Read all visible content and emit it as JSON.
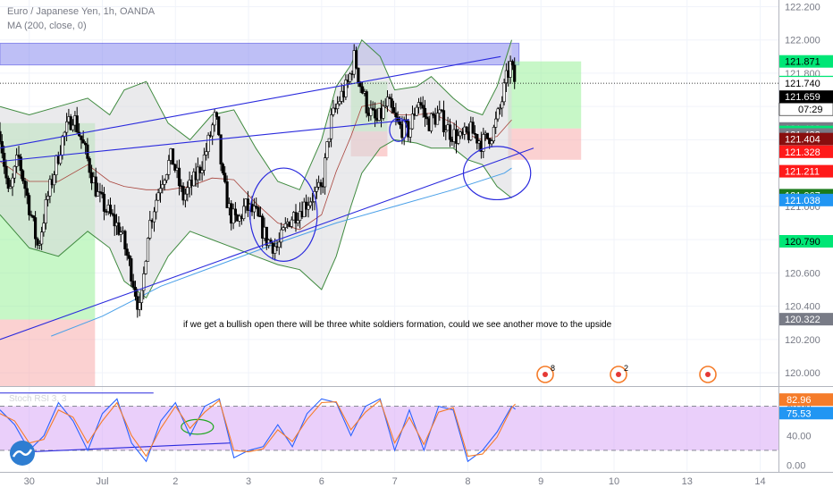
{
  "header": {
    "symbol_line": "Euro / Japanese Yen, 1h, OANDA",
    "indicator_line": "MA (200, close, 0)"
  },
  "stoch_label": "Stoch RSI 3, 3",
  "annotation": "if we get a bullish open there will be three white soldiers formation, could we see another move to the upside",
  "countdown": "07:29",
  "events": [
    {
      "label": "8"
    },
    {
      "label": "2"
    },
    {
      "label": ""
    }
  ],
  "colors": {
    "candle": "#000000",
    "bb_fill": "#d8d8dd",
    "ma200": "#4aa0e8",
    "basis": "#a8443c",
    "channel": "#2a2add",
    "supply_box": "#8a8cf0",
    "green_zone": "#8ff08f",
    "red_zone": "#f7a3a3",
    "stoch_bg": "#d9a8f6",
    "stoch_k": "#2962ff",
    "stoch_d": "#f57c2a",
    "event": "#f57c2a"
  },
  "chart_data": [
    {
      "type": "candlestick",
      "series_name": "Euro / Japanese Yen, 1h, OANDA",
      "y_ticks": [
        122.2,
        122.0,
        121.8,
        121.6,
        121.4,
        121.2,
        121.0,
        120.8,
        120.6,
        120.4,
        120.2,
        120.0
      ],
      "y_tick_labels": [
        "122.200",
        "122.000",
        "121.800",
        "121.600",
        "121.400",
        "121.200",
        "121.000",
        "120.800",
        "120.600",
        "120.400",
        "120.200",
        "120.000"
      ],
      "ylim": [
        119.92,
        122.24
      ],
      "x_ticks": [
        {
          "day": 30,
          "label": "30"
        },
        {
          "day": 31,
          "label": "Jul"
        },
        {
          "day": 32,
          "label": "2"
        },
        {
          "day": 33,
          "label": "3"
        },
        {
          "day": 34,
          "label": "6"
        },
        {
          "day": 35,
          "label": "7"
        },
        {
          "day": 36,
          "label": "8"
        },
        {
          "day": 37,
          "label": "9"
        },
        {
          "day": 38,
          "label": "10"
        },
        {
          "day": 39,
          "label": "13"
        },
        {
          "day": 40,
          "label": "14"
        }
      ],
      "xlim": [
        29.6,
        40.25
      ],
      "price_labels": [
        {
          "value": 121.871,
          "label": "121.871",
          "bg": "#00e676",
          "fg": "#000000"
        },
        {
          "value": 121.747,
          "label": "121.747",
          "bg": "#00e676",
          "fg": "#000000"
        },
        {
          "value": 121.74,
          "label": "121.740",
          "bg": "#ffffff",
          "fg": "#000000"
        },
        {
          "value": 121.659,
          "label": "121.659",
          "bg": "#000000",
          "fg": "#ffffff"
        },
        {
          "value": 121.468,
          "label": "121.468",
          "bg": "#787b86",
          "fg": "#ffffff"
        },
        {
          "value": 121.447,
          "label": "121.447",
          "bg": "#00e676",
          "fg": "#000000"
        },
        {
          "value": 121.432,
          "label": "121.432",
          "bg": "#787b86",
          "fg": "#ffffff"
        },
        {
          "value": 121.404,
          "label": "121.404",
          "bg": "#880e0e",
          "fg": "#ffffff"
        },
        {
          "value": 121.328,
          "label": "121.328",
          "bg": "#ff1a1a",
          "fg": "#ffffff"
        },
        {
          "value": 121.211,
          "label": "121.211",
          "bg": "#ff1a1a",
          "fg": "#ffffff"
        },
        {
          "value": 121.067,
          "label": "121.067",
          "bg": "#1b7a1b",
          "fg": "#ffffff"
        },
        {
          "value": 121.038,
          "label": "121.038",
          "bg": "#2196f3",
          "fg": "#ffffff"
        },
        {
          "value": 120.79,
          "label": "120.790",
          "bg": "#00e676",
          "fg": "#000000"
        },
        {
          "value": 120.322,
          "label": "120.322",
          "bg": "#787b86",
          "fg": "#ffffff"
        }
      ],
      "current_price": 121.74,
      "price_path": [
        [
          29.6,
          121.45
        ],
        [
          29.72,
          121.05
        ],
        [
          29.85,
          121.3
        ],
        [
          30.0,
          121.0
        ],
        [
          30.12,
          120.75
        ],
        [
          30.25,
          121.05
        ],
        [
          30.45,
          121.4
        ],
        [
          30.6,
          121.55
        ],
        [
          30.75,
          121.35
        ],
        [
          30.95,
          121.05
        ],
        [
          31.1,
          120.95
        ],
        [
          31.25,
          120.85
        ],
        [
          31.4,
          120.6
        ],
        [
          31.52,
          120.35
        ],
        [
          31.62,
          120.85
        ],
        [
          31.8,
          121.15
        ],
        [
          31.95,
          121.3
        ],
        [
          32.1,
          121.05
        ],
        [
          32.25,
          121.15
        ],
        [
          32.4,
          121.3
        ],
        [
          32.55,
          121.55
        ],
        [
          32.65,
          121.15
        ],
        [
          32.75,
          120.95
        ],
        [
          32.85,
          120.9
        ],
        [
          32.95,
          121.0
        ],
        [
          33.1,
          120.95
        ],
        [
          33.25,
          120.8
        ],
        [
          33.4,
          120.75
        ],
        [
          33.55,
          120.92
        ],
        [
          33.7,
          120.98
        ],
        [
          33.85,
          121.05
        ],
        [
          34.0,
          121.1
        ],
        [
          34.12,
          121.5
        ],
        [
          34.25,
          121.65
        ],
        [
          34.35,
          121.72
        ],
        [
          34.45,
          121.9
        ],
        [
          34.52,
          121.75
        ],
        [
          34.62,
          121.6
        ],
        [
          34.75,
          121.5
        ],
        [
          34.9,
          121.62
        ],
        [
          35.05,
          121.48
        ],
        [
          35.2,
          121.45
        ],
        [
          35.32,
          121.65
        ],
        [
          35.45,
          121.5
        ],
        [
          35.6,
          121.55
        ],
        [
          35.75,
          121.45
        ],
        [
          35.9,
          121.4
        ],
        [
          36.05,
          121.45
        ],
        [
          36.2,
          121.38
        ],
        [
          36.35,
          121.45
        ],
        [
          36.45,
          121.6
        ],
        [
          36.52,
          121.75
        ],
        [
          36.58,
          121.85
        ],
        [
          36.65,
          121.74
        ]
      ],
      "bb_upper": [
        [
          29.6,
          121.6
        ],
        [
          30.0,
          121.55
        ],
        [
          30.4,
          121.6
        ],
        [
          30.8,
          121.65
        ],
        [
          31.1,
          121.55
        ],
        [
          31.3,
          121.7
        ],
        [
          31.6,
          121.75
        ],
        [
          31.9,
          121.5
        ],
        [
          32.2,
          121.4
        ],
        [
          32.5,
          121.55
        ],
        [
          32.8,
          121.58
        ],
        [
          33.1,
          121.35
        ],
        [
          33.4,
          121.15
        ],
        [
          33.7,
          121.1
        ],
        [
          34.0,
          121.4
        ],
        [
          34.2,
          121.72
        ],
        [
          34.4,
          121.85
        ],
        [
          34.55,
          122.0
        ],
        [
          34.8,
          121.9
        ],
        [
          35.0,
          121.7
        ],
        [
          35.3,
          121.72
        ],
        [
          35.5,
          121.78
        ],
        [
          35.8,
          121.65
        ],
        [
          36.0,
          121.58
        ],
        [
          36.2,
          121.55
        ],
        [
          36.4,
          121.72
        ],
        [
          36.6,
          122.0
        ]
      ],
      "bb_lower": [
        [
          29.6,
          120.95
        ],
        [
          30.0,
          120.75
        ],
        [
          30.4,
          120.7
        ],
        [
          30.8,
          120.85
        ],
        [
          31.1,
          120.75
        ],
        [
          31.3,
          120.55
        ],
        [
          31.6,
          120.45
        ],
        [
          31.9,
          120.7
        ],
        [
          32.2,
          120.85
        ],
        [
          32.5,
          120.8
        ],
        [
          32.8,
          120.75
        ],
        [
          33.1,
          120.7
        ],
        [
          33.4,
          120.65
        ],
        [
          33.7,
          120.62
        ],
        [
          34.0,
          120.5
        ],
        [
          34.2,
          120.7
        ],
        [
          34.4,
          121.0
        ],
        [
          34.55,
          121.2
        ],
        [
          34.8,
          121.35
        ],
        [
          35.0,
          121.4
        ],
        [
          35.3,
          121.38
        ],
        [
          35.5,
          121.35
        ],
        [
          35.8,
          121.35
        ],
        [
          36.0,
          121.28
        ],
        [
          36.2,
          121.25
        ],
        [
          36.4,
          121.12
        ],
        [
          36.6,
          121.05
        ]
      ],
      "basis": [
        [
          29.6,
          121.27
        ],
        [
          30.0,
          121.15
        ],
        [
          30.4,
          121.15
        ],
        [
          30.8,
          121.25
        ],
        [
          31.1,
          121.15
        ],
        [
          31.3,
          121.12
        ],
        [
          31.6,
          121.1
        ],
        [
          31.9,
          121.1
        ],
        [
          32.2,
          121.12
        ],
        [
          32.5,
          121.17
        ],
        [
          32.8,
          121.16
        ],
        [
          33.1,
          121.02
        ],
        [
          33.4,
          120.9
        ],
        [
          33.7,
          120.86
        ],
        [
          34.0,
          120.95
        ],
        [
          34.2,
          121.21
        ],
        [
          34.4,
          121.42
        ],
        [
          34.55,
          121.6
        ],
        [
          34.8,
          121.62
        ],
        [
          35.0,
          121.55
        ],
        [
          35.3,
          121.55
        ],
        [
          35.5,
          121.56
        ],
        [
          35.8,
          121.5
        ],
        [
          36.0,
          121.43
        ],
        [
          36.2,
          121.4
        ],
        [
          36.4,
          121.42
        ],
        [
          36.6,
          121.52
        ]
      ],
      "ma200": [
        [
          30.3,
          120.22
        ],
        [
          31.0,
          120.34
        ],
        [
          31.8,
          120.52
        ],
        [
          32.6,
          120.65
        ],
        [
          33.4,
          120.78
        ],
        [
          34.2,
          120.9
        ],
        [
          35.0,
          121.0
        ],
        [
          35.8,
          121.1
        ],
        [
          36.5,
          121.2
        ],
        [
          36.6,
          121.23
        ]
      ],
      "channel_lines": [
        [
          [
            29.6,
            121.35
          ],
          [
            36.45,
            121.9
          ]
        ],
        [
          [
            29.6,
            121.27
          ],
          [
            35.2,
            121.52
          ]
        ],
        [
          [
            29.6,
            120.2
          ],
          [
            36.9,
            121.35
          ]
        ]
      ],
      "boxes": [
        {
          "x0": 29.6,
          "x1": 36.7,
          "y0": 121.85,
          "y1": 121.98,
          "kind": "supply"
        },
        {
          "x0": 29.6,
          "x1": 30.9,
          "y0": 120.32,
          "y1": 121.5,
          "kind": "green"
        },
        {
          "x0": 29.6,
          "x1": 30.9,
          "y0": 119.92,
          "y1": 120.32,
          "kind": "red"
        },
        {
          "x0": 34.4,
          "x1": 34.9,
          "y0": 121.45,
          "y1": 121.75,
          "kind": "green"
        },
        {
          "x0": 34.4,
          "x1": 34.9,
          "y0": 121.3,
          "y1": 121.45,
          "kind": "red"
        },
        {
          "x0": 36.55,
          "x1": 37.55,
          "y0": 121.468,
          "y1": 121.871,
          "kind": "green"
        },
        {
          "x0": 36.55,
          "x1": 37.55,
          "y0": 121.28,
          "y1": 121.468,
          "kind": "red"
        }
      ],
      "ellipses": [
        {
          "cx": 33.48,
          "cy": 120.95,
          "rx": 0.46,
          "ry": 0.28
        },
        {
          "cx": 35.05,
          "cy": 121.46,
          "rx": 0.12,
          "ry": 0.07
        },
        {
          "cx": 36.4,
          "cy": 121.2,
          "rx": 0.46,
          "ry": 0.16
        }
      ]
    },
    {
      "type": "line",
      "title": "Stoch RSI 3, 3",
      "y_ticks": [
        80,
        40,
        0
      ],
      "y_tick_labels": [
        "80.00",
        "40.00",
        "0.00"
      ],
      "ylim": [
        -8,
        105
      ],
      "band": [
        20,
        80
      ],
      "value_labels": [
        {
          "value": 82.96,
          "label": "82.96",
          "bg": "#f57c2a",
          "fg": "#ffffff"
        },
        {
          "value": 75.53,
          "label": "75.53",
          "bg": "#2196f3",
          "fg": "#ffffff"
        }
      ],
      "series": [
        {
          "name": "K",
          "points": [
            [
              29.6,
              75
            ],
            [
              29.8,
              55
            ],
            [
              30.0,
              20
            ],
            [
              30.2,
              40
            ],
            [
              30.4,
              85
            ],
            [
              30.6,
              60
            ],
            [
              30.8,
              20
            ],
            [
              31.0,
              70
            ],
            [
              31.2,
              90
            ],
            [
              31.4,
              30
            ],
            [
              31.6,
              5
            ],
            [
              31.8,
              60
            ],
            [
              32.0,
              85
            ],
            [
              32.2,
              40
            ],
            [
              32.4,
              80
            ],
            [
              32.6,
              90
            ],
            [
              32.8,
              10
            ],
            [
              33.0,
              20
            ],
            [
              33.2,
              25
            ],
            [
              33.4,
              55
            ],
            [
              33.6,
              25
            ],
            [
              33.8,
              70
            ],
            [
              34.0,
              90
            ],
            [
              34.2,
              85
            ],
            [
              34.4,
              40
            ],
            [
              34.6,
              80
            ],
            [
              34.8,
              90
            ],
            [
              35.0,
              20
            ],
            [
              35.2,
              75
            ],
            [
              35.4,
              20
            ],
            [
              35.6,
              80
            ],
            [
              35.8,
              75
            ],
            [
              36.0,
              5
            ],
            [
              36.2,
              20
            ],
            [
              36.4,
              45
            ],
            [
              36.6,
              80
            ],
            [
              36.65,
              76
            ]
          ]
        },
        {
          "name": "D",
          "points": [
            [
              29.6,
              70
            ],
            [
              29.8,
              60
            ],
            [
              30.0,
              30
            ],
            [
              30.2,
              35
            ],
            [
              30.4,
              75
            ],
            [
              30.6,
              65
            ],
            [
              30.8,
              30
            ],
            [
              31.0,
              60
            ],
            [
              31.2,
              85
            ],
            [
              31.4,
              40
            ],
            [
              31.6,
              12
            ],
            [
              31.8,
              50
            ],
            [
              32.0,
              80
            ],
            [
              32.2,
              50
            ],
            [
              32.4,
              72
            ],
            [
              32.6,
              88
            ],
            [
              32.8,
              20
            ],
            [
              33.0,
              18
            ],
            [
              33.2,
              22
            ],
            [
              33.4,
              48
            ],
            [
              33.6,
              32
            ],
            [
              33.8,
              62
            ],
            [
              34.0,
              85
            ],
            [
              34.2,
              86
            ],
            [
              34.4,
              48
            ],
            [
              34.6,
              72
            ],
            [
              34.8,
              88
            ],
            [
              35.0,
              30
            ],
            [
              35.2,
              65
            ],
            [
              35.4,
              28
            ],
            [
              35.6,
              72
            ],
            [
              35.8,
              78
            ],
            [
              36.0,
              12
            ],
            [
              36.2,
              15
            ],
            [
              36.4,
              38
            ],
            [
              36.6,
              78
            ],
            [
              36.65,
              83
            ]
          ]
        }
      ],
      "guide_lines": [
        [
          [
            29.6,
            98
          ],
          [
            31.7,
            98
          ]
        ],
        [
          [
            30.0,
            18
          ],
          [
            32.75,
            30
          ]
        ]
      ],
      "ellipse": {
        "cx": 32.3,
        "cy": 52,
        "rx": 0.22,
        "ry": 10
      }
    }
  ]
}
